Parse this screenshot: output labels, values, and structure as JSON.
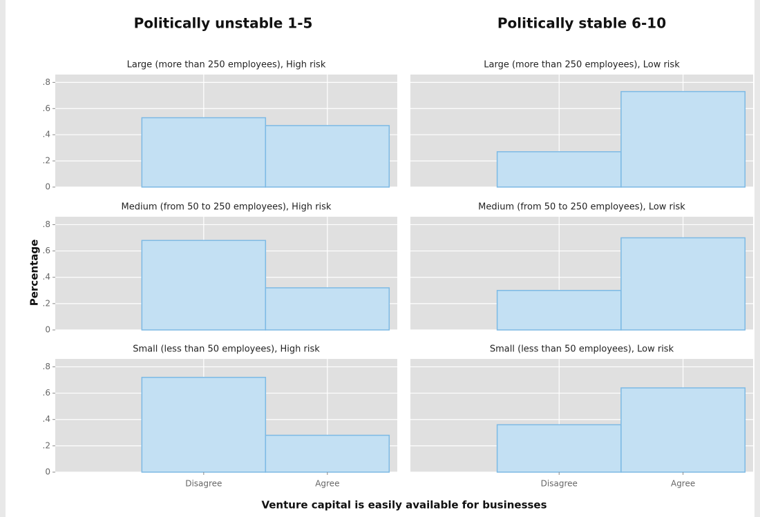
{
  "column_titles": [
    "Politically unstable 1-5",
    "Politically stable 6-10"
  ],
  "ylabel": "Percentage",
  "xlabel": "Venture capital is easily available for businesses",
  "categories": [
    "Disagree",
    "Agree"
  ],
  "ylim": [
    0,
    0.86
  ],
  "yticks": [
    0,
    {
      "value": 0.2,
      "label": ".2"
    },
    {
      "value": 0.4,
      "label": ".4"
    },
    {
      "value": 0.6,
      "label": ".6"
    },
    {
      "value": 0.8,
      "label": ".8"
    }
  ],
  "color": "#c3e0f3",
  "edge_color": "#7cb9e4",
  "grid": true,
  "chart_data": [
    {
      "type": "bar",
      "title": "Large (more than 250 employees), High risk",
      "values": [
        0.53,
        0.47
      ]
    },
    {
      "type": "bar",
      "title": "Large (more than 250 employees), Low risk",
      "values": [
        0.27,
        0.73
      ]
    },
    {
      "type": "bar",
      "title": "Medium (from 50 to 250 employees), High risk",
      "values": [
        0.68,
        0.32
      ]
    },
    {
      "type": "bar",
      "title": "Medium (from 50 to 250 employees), Low risk",
      "values": [
        0.3,
        0.7
      ]
    },
    {
      "type": "bar",
      "title": "Small (less than 50 employees), High risk",
      "values": [
        0.72,
        0.28
      ]
    },
    {
      "type": "bar",
      "title": "Small (less than 50 employees), Low risk",
      "values": [
        0.36,
        0.64
      ]
    }
  ]
}
